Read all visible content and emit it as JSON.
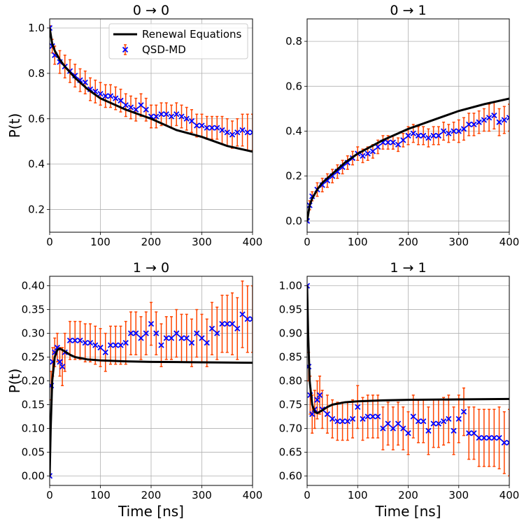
{
  "chart_data": [
    {
      "type": "line",
      "title": "0 → 0",
      "xlabel": "",
      "ylabel": "P(t)",
      "xlim": [
        0,
        400
      ],
      "ylim": [
        0.1,
        1.04
      ],
      "xticks": [
        0,
        100,
        200,
        300,
        400
      ],
      "xtick_labels": [
        "0",
        "100",
        "200",
        "300",
        "400"
      ],
      "yticks": [
        0.2,
        0.4,
        0.6,
        0.8,
        1.0
      ],
      "ytick_labels": [
        "0.2",
        "0.4",
        "0.6",
        "0.8",
        "1.0"
      ],
      "grid": true,
      "legend": {
        "placement": "top-right",
        "entries": [
          "Renewal Equations",
          "QSD-MD"
        ]
      },
      "series": [
        {
          "name": "Renewal Equations",
          "kind": "line",
          "color": "#000000",
          "x": [
            0,
            5,
            10,
            20,
            30,
            50,
            75,
            100,
            150,
            200,
            250,
            300,
            350,
            400
          ],
          "y": [
            1.0,
            0.93,
            0.9,
            0.86,
            0.83,
            0.78,
            0.73,
            0.69,
            0.64,
            0.6,
            0.55,
            0.52,
            0.48,
            0.455
          ]
        },
        {
          "name": "QSD-MD",
          "kind": "errorbar",
          "color": "#0000ff",
          "errcolor": "#ff4500",
          "x": [
            0,
            5,
            10,
            20,
            30,
            40,
            50,
            60,
            70,
            80,
            90,
            100,
            110,
            120,
            130,
            140,
            150,
            160,
            170,
            180,
            190,
            200,
            210,
            220,
            230,
            240,
            250,
            260,
            270,
            280,
            290,
            300,
            310,
            320,
            330,
            340,
            350,
            360,
            370,
            380,
            390,
            400
          ],
          "y": [
            1.0,
            0.92,
            0.88,
            0.85,
            0.83,
            0.81,
            0.79,
            0.77,
            0.76,
            0.73,
            0.72,
            0.71,
            0.7,
            0.7,
            0.69,
            0.68,
            0.66,
            0.65,
            0.64,
            0.66,
            0.64,
            0.61,
            0.61,
            0.62,
            0.62,
            0.61,
            0.62,
            0.61,
            0.6,
            0.59,
            0.57,
            0.57,
            0.56,
            0.56,
            0.56,
            0.55,
            0.54,
            0.53,
            0.54,
            0.55,
            0.54,
            0.54
          ],
          "yerr": [
            0.01,
            0.03,
            0.04,
            0.05,
            0.05,
            0.05,
            0.05,
            0.05,
            0.05,
            0.05,
            0.05,
            0.05,
            0.05,
            0.05,
            0.05,
            0.05,
            0.05,
            0.05,
            0.05,
            0.05,
            0.05,
            0.05,
            0.05,
            0.05,
            0.05,
            0.05,
            0.05,
            0.05,
            0.05,
            0.05,
            0.05,
            0.05,
            0.05,
            0.05,
            0.05,
            0.06,
            0.06,
            0.06,
            0.06,
            0.07,
            0.08,
            0.08
          ]
        }
      ]
    },
    {
      "type": "line",
      "title": "0 → 1",
      "xlabel": "",
      "ylabel": "",
      "xlim": [
        0,
        400
      ],
      "ylim": [
        -0.05,
        0.9
      ],
      "xticks": [
        0,
        100,
        200,
        300,
        400
      ],
      "xtick_labels": [
        "0",
        "100",
        "200",
        "300",
        "400"
      ],
      "yticks": [
        0.0,
        0.2,
        0.4,
        0.6,
        0.8
      ],
      "ytick_labels": [
        "0.0",
        "0.2",
        "0.4",
        "0.6",
        "0.8"
      ],
      "grid": true,
      "series": [
        {
          "name": "Renewal Equations",
          "kind": "line",
          "color": "#000000",
          "x": [
            0,
            5,
            10,
            20,
            30,
            50,
            75,
            100,
            150,
            200,
            250,
            300,
            350,
            400
          ],
          "y": [
            0.0,
            0.07,
            0.1,
            0.14,
            0.17,
            0.21,
            0.26,
            0.3,
            0.36,
            0.41,
            0.45,
            0.49,
            0.52,
            0.545
          ]
        },
        {
          "name": "QSD-MD",
          "kind": "errorbar",
          "color": "#0000ff",
          "errcolor": "#ff4500",
          "x": [
            0,
            5,
            10,
            20,
            30,
            40,
            50,
            60,
            70,
            80,
            90,
            100,
            110,
            120,
            130,
            140,
            150,
            160,
            170,
            180,
            190,
            200,
            210,
            220,
            230,
            240,
            250,
            260,
            270,
            280,
            290,
            300,
            310,
            320,
            330,
            340,
            350,
            360,
            370,
            380,
            390,
            400
          ],
          "y": [
            0.0,
            0.07,
            0.11,
            0.14,
            0.16,
            0.18,
            0.2,
            0.22,
            0.24,
            0.26,
            0.28,
            0.3,
            0.29,
            0.3,
            0.31,
            0.33,
            0.35,
            0.35,
            0.35,
            0.34,
            0.36,
            0.38,
            0.39,
            0.38,
            0.38,
            0.37,
            0.38,
            0.38,
            0.4,
            0.39,
            0.4,
            0.4,
            0.41,
            0.43,
            0.43,
            0.44,
            0.45,
            0.46,
            0.47,
            0.44,
            0.45,
            0.46
          ],
          "yerr": [
            0.005,
            0.02,
            0.02,
            0.03,
            0.03,
            0.03,
            0.03,
            0.03,
            0.03,
            0.03,
            0.03,
            0.03,
            0.03,
            0.03,
            0.03,
            0.03,
            0.03,
            0.03,
            0.03,
            0.03,
            0.03,
            0.04,
            0.04,
            0.04,
            0.04,
            0.04,
            0.04,
            0.04,
            0.04,
            0.04,
            0.04,
            0.05,
            0.05,
            0.05,
            0.05,
            0.05,
            0.05,
            0.06,
            0.06,
            0.06,
            0.06,
            0.06
          ]
        }
      ]
    },
    {
      "type": "line",
      "title": "1 → 0",
      "xlabel": "Time [ns]",
      "ylabel": "P(t)",
      "xlim": [
        0,
        400
      ],
      "ylim": [
        -0.02,
        0.42
      ],
      "xticks": [
        0,
        100,
        200,
        300,
        400
      ],
      "xtick_labels": [
        "0",
        "100",
        "200",
        "300",
        "400"
      ],
      "yticks": [
        0.0,
        0.05,
        0.1,
        0.15,
        0.2,
        0.25,
        0.3,
        0.35,
        0.4
      ],
      "ytick_labels": [
        "0.00",
        "0.05",
        "0.10",
        "0.15",
        "0.20",
        "0.25",
        "0.30",
        "0.35",
        "0.40"
      ],
      "grid": true,
      "series": [
        {
          "name": "Renewal Equations",
          "kind": "line",
          "color": "#000000",
          "x": [
            0,
            2,
            5,
            10,
            15,
            20,
            30,
            40,
            50,
            75,
            100,
            150,
            200,
            300,
            400
          ],
          "y": [
            0.0,
            0.1,
            0.2,
            0.25,
            0.265,
            0.268,
            0.262,
            0.255,
            0.25,
            0.245,
            0.243,
            0.241,
            0.24,
            0.239,
            0.238
          ]
        },
        {
          "name": "QSD-MD",
          "kind": "errorbar",
          "color": "#0000ff",
          "errcolor": "#ff4500",
          "x": [
            0,
            3,
            6,
            10,
            15,
            20,
            25,
            30,
            40,
            50,
            60,
            70,
            80,
            90,
            100,
            110,
            120,
            130,
            140,
            150,
            160,
            170,
            180,
            190,
            200,
            210,
            220,
            230,
            240,
            250,
            260,
            270,
            280,
            290,
            300,
            310,
            320,
            330,
            340,
            350,
            360,
            370,
            380,
            390,
            400
          ],
          "y": [
            0.0,
            0.19,
            0.24,
            0.26,
            0.27,
            0.24,
            0.23,
            0.26,
            0.285,
            0.285,
            0.285,
            0.28,
            0.28,
            0.275,
            0.27,
            0.26,
            0.275,
            0.275,
            0.275,
            0.28,
            0.3,
            0.3,
            0.29,
            0.3,
            0.32,
            0.3,
            0.275,
            0.29,
            0.29,
            0.3,
            0.29,
            0.29,
            0.28,
            0.3,
            0.29,
            0.28,
            0.31,
            0.3,
            0.32,
            0.32,
            0.32,
            0.31,
            0.34,
            0.33,
            0.33
          ],
          "yerr": [
            0.0,
            0.03,
            0.03,
            0.03,
            0.03,
            0.03,
            0.04,
            0.04,
            0.04,
            0.04,
            0.04,
            0.04,
            0.04,
            0.04,
            0.04,
            0.04,
            0.04,
            0.04,
            0.04,
            0.045,
            0.045,
            0.045,
            0.045,
            0.045,
            0.045,
            0.045,
            0.045,
            0.045,
            0.045,
            0.05,
            0.05,
            0.05,
            0.05,
            0.05,
            0.05,
            0.05,
            0.055,
            0.055,
            0.06,
            0.06,
            0.065,
            0.065,
            0.07,
            0.07,
            0.07
          ]
        }
      ]
    },
    {
      "type": "line",
      "title": "1 → 1",
      "xlabel": "Time [ns]",
      "ylabel": "",
      "xlim": [
        0,
        400
      ],
      "ylim": [
        0.58,
        1.02
      ],
      "xticks": [
        0,
        100,
        200,
        300,
        400
      ],
      "xtick_labels": [
        "0",
        "100",
        "200",
        "300",
        "400"
      ],
      "yticks": [
        0.6,
        0.65,
        0.7,
        0.75,
        0.8,
        0.85,
        0.9,
        0.95,
        1.0
      ],
      "ytick_labels": [
        "0.60",
        "0.65",
        "0.70",
        "0.75",
        "0.80",
        "0.85",
        "0.90",
        "0.95",
        "1.00"
      ],
      "grid": true,
      "series": [
        {
          "name": "Renewal Equations",
          "kind": "line",
          "color": "#000000",
          "x": [
            0,
            2,
            5,
            10,
            15,
            20,
            30,
            40,
            50,
            75,
            100,
            150,
            200,
            300,
            400
          ],
          "y": [
            1.0,
            0.9,
            0.8,
            0.75,
            0.735,
            0.732,
            0.738,
            0.745,
            0.75,
            0.755,
            0.757,
            0.759,
            0.76,
            0.761,
            0.762
          ]
        },
        {
          "name": "QSD-MD",
          "kind": "errorbar",
          "color": "#0000ff",
          "errcolor": "#ff4500",
          "x": [
            0,
            3,
            6,
            10,
            15,
            20,
            25,
            30,
            40,
            50,
            60,
            70,
            80,
            90,
            100,
            110,
            120,
            130,
            140,
            150,
            160,
            170,
            180,
            190,
            200,
            210,
            220,
            230,
            240,
            250,
            260,
            270,
            280,
            290,
            300,
            310,
            320,
            330,
            340,
            350,
            360,
            370,
            380,
            390,
            400
          ],
          "y": [
            1.0,
            0.83,
            0.77,
            0.73,
            0.74,
            0.76,
            0.77,
            0.74,
            0.73,
            0.72,
            0.715,
            0.715,
            0.715,
            0.72,
            0.745,
            0.72,
            0.725,
            0.725,
            0.725,
            0.7,
            0.71,
            0.7,
            0.71,
            0.7,
            0.69,
            0.725,
            0.715,
            0.715,
            0.695,
            0.71,
            0.71,
            0.715,
            0.72,
            0.695,
            0.72,
            0.735,
            0.69,
            0.69,
            0.68,
            0.68,
            0.68,
            0.68,
            0.68,
            0.67,
            0.67
          ],
          "yerr": [
            0.0,
            0.03,
            0.04,
            0.04,
            0.04,
            0.04,
            0.04,
            0.04,
            0.04,
            0.04,
            0.04,
            0.04,
            0.04,
            0.04,
            0.045,
            0.045,
            0.045,
            0.045,
            0.045,
            0.045,
            0.045,
            0.045,
            0.045,
            0.045,
            0.045,
            0.045,
            0.045,
            0.045,
            0.05,
            0.05,
            0.05,
            0.05,
            0.05,
            0.05,
            0.05,
            0.05,
            0.055,
            0.055,
            0.06,
            0.06,
            0.06,
            0.06,
            0.065,
            0.065,
            0.07
          ]
        }
      ]
    }
  ]
}
